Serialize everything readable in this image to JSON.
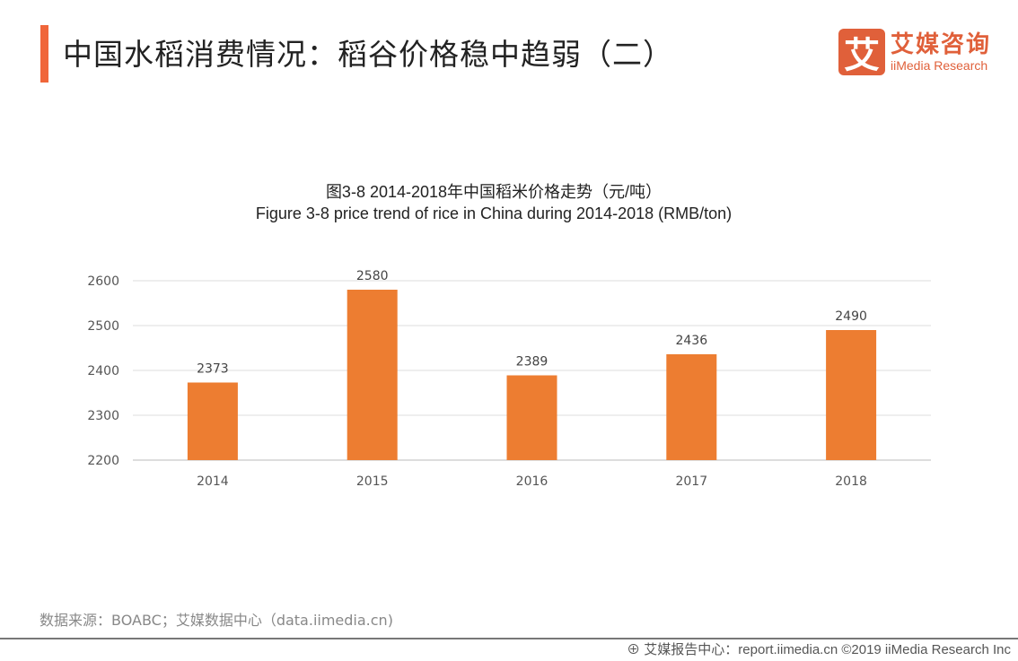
{
  "header": {
    "title": "中国水稻消费情况：稻谷价格稳中趋弱（二）"
  },
  "logo": {
    "mark": "艾",
    "cn": "艾媒咨询",
    "en": "iiMedia Research",
    "color": "#E0603A"
  },
  "chart_data": {
    "type": "bar",
    "title": "图3-8 2014-2018年中国稻米价格走势（元/吨）",
    "subtitle": "Figure 3-8 price trend of rice in China during 2014-2018 (RMB/ton)",
    "categories": [
      "2014",
      "2015",
      "2016",
      "2017",
      "2018"
    ],
    "values": [
      2373,
      2580,
      2389,
      2436,
      2490
    ],
    "ylim": [
      2200,
      2600
    ],
    "yticks": [
      2200,
      2300,
      2400,
      2500,
      2600
    ],
    "grid": true,
    "color": "#ED7D31",
    "data_labels": true
  },
  "source": "数据来源：BOABC；艾媒数据中心（data.iimedia.cn)",
  "footer": "艾媒报告中心：report.iimedia.cn   ©2019  iiMedia Research  Inc"
}
